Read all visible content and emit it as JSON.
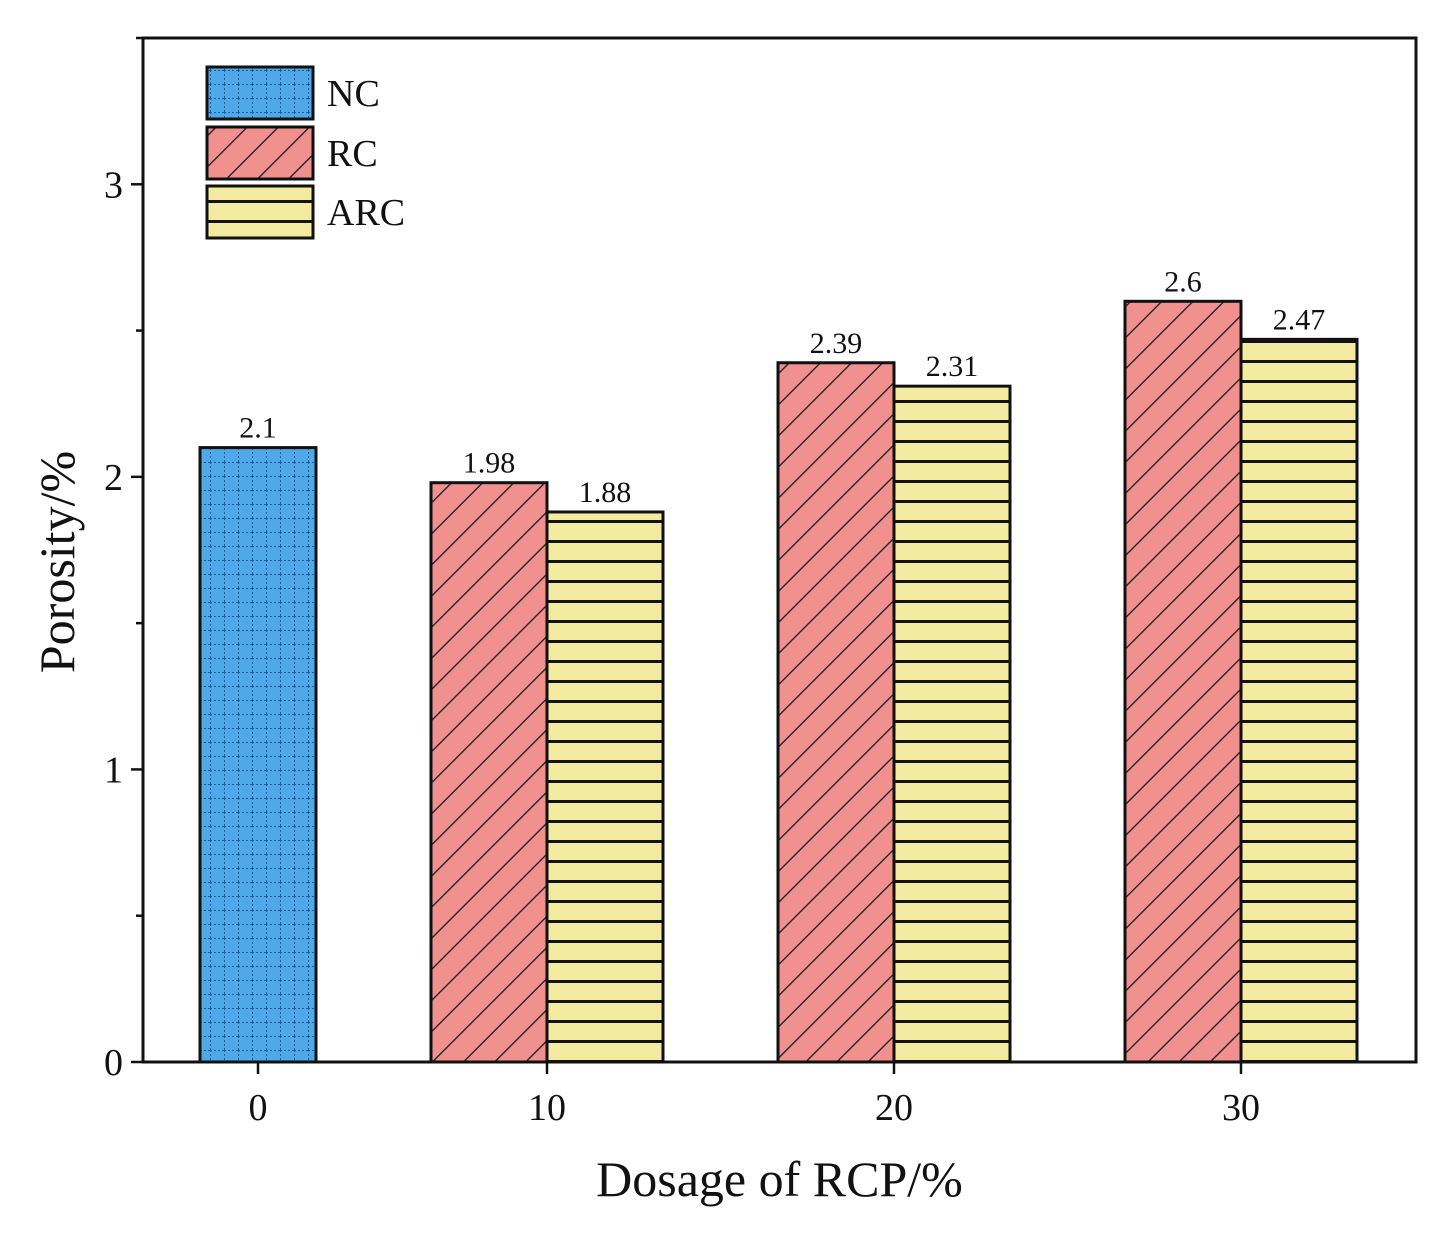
{
  "chart_data": {
    "type": "bar",
    "title": "",
    "xlabel": "Dosage of RCP/%",
    "ylabel": "Porosity/%",
    "ylim": [
      0,
      3.5
    ],
    "yticks": [
      0,
      1,
      2,
      3
    ],
    "ytick_labels": [
      "0",
      "1",
      "2",
      "3"
    ],
    "categories": [
      "0",
      "10",
      "20",
      "30"
    ],
    "series": [
      {
        "name": "NC",
        "values": [
          2.1,
          null,
          null,
          null
        ],
        "labels": [
          "2.1",
          "",
          "",
          ""
        ],
        "color": "#4fa9e8",
        "pattern": "grid"
      },
      {
        "name": "RC",
        "values": [
          null,
          1.98,
          2.39,
          2.6
        ],
        "labels": [
          "",
          "1.98",
          "2.39",
          "2.6"
        ],
        "color": "#f0908f",
        "pattern": "diagonal"
      },
      {
        "name": "ARC",
        "values": [
          null,
          1.88,
          2.31,
          2.47
        ],
        "labels": [
          "",
          "1.88",
          "2.31",
          "2.47"
        ],
        "color": "#f3eca0",
        "pattern": "horizontal"
      }
    ],
    "legend_position": "top-left",
    "grid": false
  }
}
